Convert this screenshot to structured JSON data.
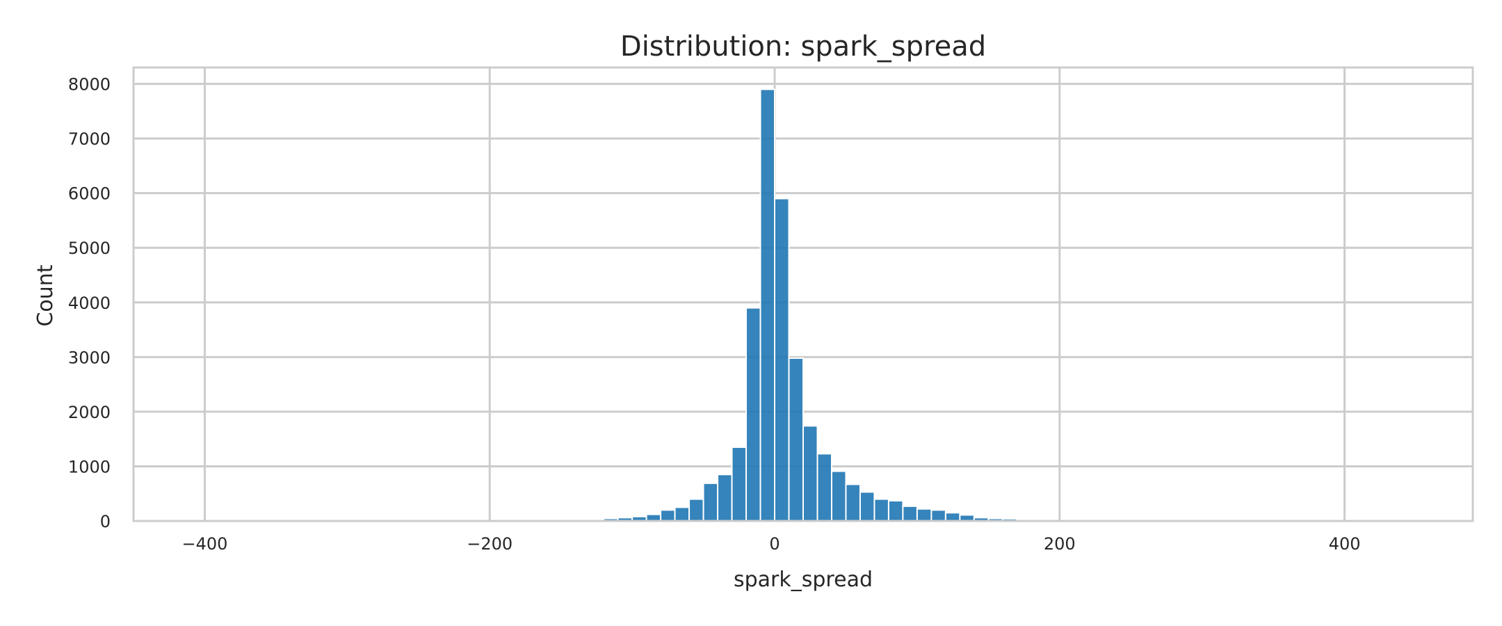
{
  "chart_data": {
    "type": "bar",
    "title": "Distribution: spark_spread",
    "xlabel": "spark_spread",
    "ylabel": "Count",
    "xlim": [
      -450,
      490
    ],
    "ylim": [
      0,
      8300
    ],
    "grid": true,
    "bar_color": "#1f77b4",
    "grid_color": "#cccccc",
    "x_ticks": [
      {
        "value": -400,
        "label": "−400"
      },
      {
        "value": -200,
        "label": "−200"
      },
      {
        "value": 0,
        "label": "0"
      },
      {
        "value": 200,
        "label": "200"
      },
      {
        "value": 400,
        "label": "400"
      }
    ],
    "y_ticks": [
      {
        "value": 0,
        "label": "0"
      },
      {
        "value": 1000,
        "label": "1000"
      },
      {
        "value": 2000,
        "label": "2000"
      },
      {
        "value": 3000,
        "label": "3000"
      },
      {
        "value": 4000,
        "label": "4000"
      },
      {
        "value": 5000,
        "label": "5000"
      },
      {
        "value": 6000,
        "label": "6000"
      },
      {
        "value": 7000,
        "label": "7000"
      },
      {
        "value": 8000,
        "label": "8000"
      }
    ],
    "bins": [
      {
        "x0": -160,
        "x1": -150,
        "count": 5
      },
      {
        "x0": -150,
        "x1": -140,
        "count": 8
      },
      {
        "x0": -140,
        "x1": -130,
        "count": 12
      },
      {
        "x0": -130,
        "x1": -120,
        "count": 25
      },
      {
        "x0": -120,
        "x1": -110,
        "count": 45
      },
      {
        "x0": -110,
        "x1": -100,
        "count": 60
      },
      {
        "x0": -100,
        "x1": -90,
        "count": 80
      },
      {
        "x0": -90,
        "x1": -80,
        "count": 120
      },
      {
        "x0": -80,
        "x1": -70,
        "count": 200
      },
      {
        "x0": -70,
        "x1": -60,
        "count": 250
      },
      {
        "x0": -60,
        "x1": -50,
        "count": 400
      },
      {
        "x0": -50,
        "x1": -40,
        "count": 690
      },
      {
        "x0": -40,
        "x1": -30,
        "count": 850
      },
      {
        "x0": -30,
        "x1": -20,
        "count": 1350
      },
      {
        "x0": -20,
        "x1": -10,
        "count": 3900
      },
      {
        "x0": -10,
        "x1": 0,
        "count": 7900
      },
      {
        "x0": 0,
        "x1": 10,
        "count": 5900
      },
      {
        "x0": 10,
        "x1": 20,
        "count": 2980
      },
      {
        "x0": 20,
        "x1": 30,
        "count": 1740
      },
      {
        "x0": 30,
        "x1": 40,
        "count": 1230
      },
      {
        "x0": 40,
        "x1": 50,
        "count": 910
      },
      {
        "x0": 50,
        "x1": 60,
        "count": 670
      },
      {
        "x0": 60,
        "x1": 70,
        "count": 530
      },
      {
        "x0": 70,
        "x1": 80,
        "count": 400
      },
      {
        "x0": 80,
        "x1": 90,
        "count": 370
      },
      {
        "x0": 90,
        "x1": 100,
        "count": 270
      },
      {
        "x0": 100,
        "x1": 110,
        "count": 220
      },
      {
        "x0": 110,
        "x1": 120,
        "count": 200
      },
      {
        "x0": 120,
        "x1": 130,
        "count": 150
      },
      {
        "x0": 130,
        "x1": 140,
        "count": 110
      },
      {
        "x0": 140,
        "x1": 150,
        "count": 60
      },
      {
        "x0": 150,
        "x1": 160,
        "count": 45
      },
      {
        "x0": 160,
        "x1": 170,
        "count": 40
      },
      {
        "x0": 170,
        "x1": 180,
        "count": 20
      },
      {
        "x0": 180,
        "x1": 190,
        "count": 10
      }
    ]
  }
}
